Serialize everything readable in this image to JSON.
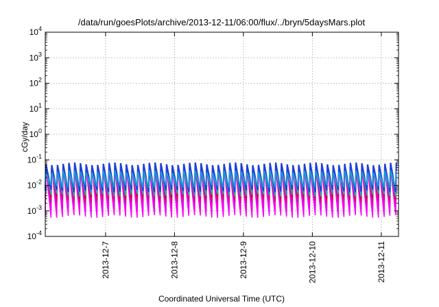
{
  "chart_data": {
    "type": "line",
    "title": "/data/run/goesPlots/archive/2013-12-11/06:00/flux/../bryn/5daysMars.plot",
    "xlabel": "Coordinated Universal Time (UTC)",
    "ylabel": "cGy/day",
    "y_scale": "log",
    "ylim": [
      0.0001,
      10000
    ],
    "y_ticks": [
      {
        "value": 0.0001,
        "base": "10",
        "exp": "-4"
      },
      {
        "value": 0.001,
        "base": "10",
        "exp": "-3"
      },
      {
        "value": 0.01,
        "base": "10",
        "exp": "-2"
      },
      {
        "value": 0.1,
        "base": "10",
        "exp": "-1"
      },
      {
        "value": 1,
        "base": "10",
        "exp": "0"
      },
      {
        "value": 10,
        "base": "10",
        "exp": "1"
      },
      {
        "value": 100,
        "base": "10",
        "exp": "2"
      },
      {
        "value": 1000,
        "base": "10",
        "exp": "3"
      },
      {
        "value": 10000,
        "base": "10",
        "exp": "4"
      }
    ],
    "xlim": [
      "2013-12-06 03:00",
      "2013-12-11 06:00"
    ],
    "x_ticks": [
      "2013-12-7",
      "2013-12-8",
      "2013-12-9",
      "2013-12-10",
      "2013-12-11"
    ],
    "grid": true,
    "orbit_period_hours": 2.0,
    "series": [
      {
        "color": "#ff00ff",
        "peak": 0.05,
        "trough": 0.0006
      },
      {
        "color": "#ee00ee",
        "peak": 0.045,
        "trough": 0.0011
      },
      {
        "color": "#cc1177",
        "peak": 0.055,
        "trough": 0.0022
      },
      {
        "color": "#cc0000",
        "peak": 0.06,
        "trough": 0.0035
      },
      {
        "color": "#20b2aa",
        "peak": 0.04,
        "trough": 0.004
      },
      {
        "color": "#1f3fdd",
        "peak": 0.07,
        "trough": 0.006
      },
      {
        "color": "#1a9fd6",
        "peak": 0.035,
        "trough": 0.009
      }
    ]
  }
}
